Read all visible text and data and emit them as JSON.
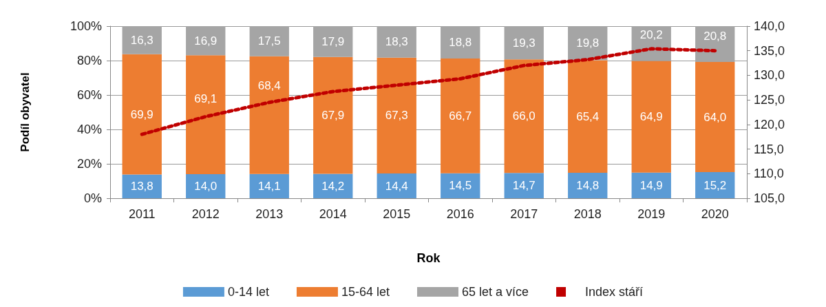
{
  "chart_data": {
    "type": "bar",
    "stacked": true,
    "xlabel": "Rok",
    "ylabel": "Podíl obyvatel",
    "categories": [
      "2011",
      "2012",
      "2013",
      "2014",
      "2015",
      "2016",
      "2017",
      "2018",
      "2019",
      "2020"
    ],
    "series": [
      {
        "name": "0-14 let",
        "color": "#5b9bd5",
        "values": [
          13.8,
          14.0,
          14.1,
          14.2,
          14.4,
          14.5,
          14.7,
          14.8,
          14.9,
          15.2
        ],
        "value_labels": [
          "13,8",
          "14,0",
          "14,1",
          "14,2",
          "14,4",
          "14,5",
          "14,7",
          "14,8",
          "14,9",
          "15,2"
        ]
      },
      {
        "name": "15-64 let",
        "color": "#ed7d31",
        "values": [
          69.9,
          69.1,
          68.4,
          67.9,
          67.3,
          66.7,
          66.0,
          65.4,
          64.9,
          64.0
        ],
        "value_labels": [
          "69,9",
          "69,1",
          "68,4",
          "67,9",
          "67,3",
          "66,7",
          "66,0",
          "65,4",
          "64,9",
          "64,0"
        ]
      },
      {
        "name": "65 let a více",
        "color": "#a5a5a5",
        "values": [
          16.3,
          16.9,
          17.5,
          17.9,
          18.3,
          18.8,
          19.3,
          19.8,
          20.2,
          20.8
        ],
        "value_labels": [
          "16,3",
          "16,9",
          "17,5",
          "17,9",
          "18,3",
          "18,8",
          "19,3",
          "19,8",
          "20,2",
          "20,8"
        ]
      },
      {
        "name": "Index stáří",
        "type": "line",
        "axis": "y2",
        "color": "#c00000",
        "line_style": "dotted",
        "marker": "none",
        "values": [
          118.0,
          121.6,
          124.5,
          126.7,
          128.0,
          129.3,
          132.0,
          133.2,
          135.4,
          135.0
        ]
      }
    ],
    "ylim": [
      0,
      100
    ],
    "yticks": [
      {
        "value": 0,
        "label": "0%"
      },
      {
        "value": 20,
        "label": "20%"
      },
      {
        "value": 40,
        "label": "40%"
      },
      {
        "value": 60,
        "label": "60%"
      },
      {
        "value": 80,
        "label": "80%"
      },
      {
        "value": 100,
        "label": "100%"
      }
    ],
    "y2lim": [
      105,
      140
    ],
    "y2ticks": [
      {
        "value": 105,
        "label": "105,0"
      },
      {
        "value": 110,
        "label": "110,0"
      },
      {
        "value": 115,
        "label": "115,0"
      },
      {
        "value": 120,
        "label": "120,0"
      },
      {
        "value": 125,
        "label": "125,0"
      },
      {
        "value": 130,
        "label": "130,0"
      },
      {
        "value": 135,
        "label": "135,0"
      },
      {
        "value": 140,
        "label": "140,0"
      }
    ],
    "grid": "y",
    "legend": "bottom"
  }
}
